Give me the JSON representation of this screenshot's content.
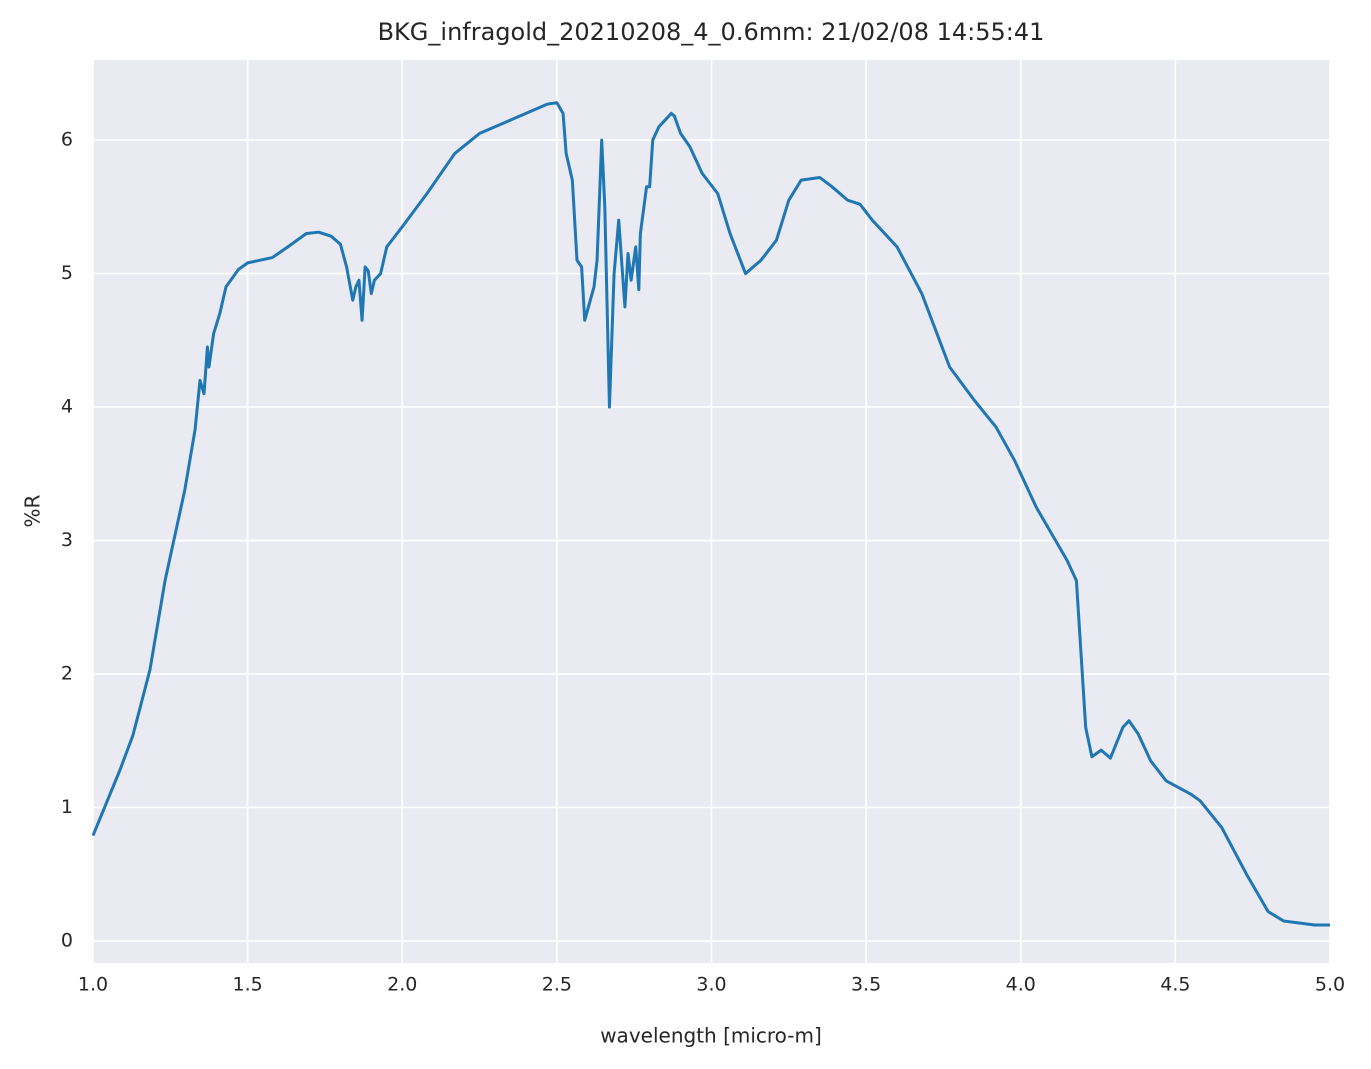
{
  "chart_data": {
    "type": "line",
    "title": "BKG_infragold_20210208_4_0.6mm:  21/02/08 14:55:41",
    "xlabel": "wavelength [micro-m]",
    "ylabel": "%R",
    "x": [
      1.0,
      1.087,
      1.129,
      1.184,
      1.233,
      1.297,
      1.33,
      1.346,
      1.359,
      1.37,
      1.375,
      1.39,
      1.41,
      1.43,
      1.47,
      1.5,
      1.58,
      1.63,
      1.69,
      1.73,
      1.77,
      1.8,
      1.82,
      1.84,
      1.85,
      1.86,
      1.87,
      1.88,
      1.89,
      1.9,
      1.91,
      1.93,
      1.95,
      2.0,
      2.08,
      2.17,
      2.25,
      2.3,
      2.4,
      2.47,
      2.5,
      2.52,
      2.53,
      2.55,
      2.565,
      2.58,
      2.59,
      2.62,
      2.63,
      2.645,
      2.655,
      2.67,
      2.685,
      2.7,
      2.72,
      2.73,
      2.74,
      2.755,
      2.765,
      2.77,
      2.79,
      2.8,
      2.81,
      2.83,
      2.85,
      2.87,
      2.88,
      2.9,
      2.93,
      2.95,
      2.97,
      3.02,
      3.06,
      3.11,
      3.16,
      3.21,
      3.25,
      3.29,
      3.35,
      3.39,
      3.44,
      3.48,
      3.52,
      3.6,
      3.68,
      3.77,
      3.85,
      3.92,
      3.98,
      4.05,
      4.15,
      4.18,
      4.21,
      4.23,
      4.26,
      4.29,
      4.33,
      4.35,
      4.38,
      4.42,
      4.47,
      4.55,
      4.58,
      4.65,
      4.73,
      4.8,
      4.85,
      4.95,
      5.0
    ],
    "series": [
      {
        "name": "%R",
        "color": "#1f77b4",
        "values": [
          0.79,
          1.28,
          1.54,
          2.03,
          2.7,
          3.38,
          3.83,
          4.2,
          4.1,
          4.45,
          4.3,
          4.55,
          4.7,
          4.9,
          5.03,
          5.08,
          5.12,
          5.2,
          5.3,
          5.31,
          5.28,
          5.22,
          5.05,
          4.8,
          4.9,
          4.95,
          4.65,
          5.05,
          5.02,
          4.85,
          4.95,
          5.0,
          5.2,
          5.35,
          5.6,
          5.9,
          6.05,
          6.1,
          6.2,
          6.27,
          6.28,
          6.2,
          5.9,
          5.7,
          5.1,
          5.05,
          4.65,
          4.9,
          5.1,
          6.0,
          5.5,
          4.0,
          5.0,
          5.4,
          4.75,
          5.15,
          4.95,
          5.2,
          4.88,
          5.3,
          5.65,
          5.65,
          6.0,
          6.1,
          6.15,
          6.2,
          6.18,
          6.05,
          5.95,
          5.85,
          5.75,
          5.6,
          5.3,
          5.0,
          5.1,
          5.25,
          5.55,
          5.7,
          5.72,
          5.65,
          5.55,
          5.52,
          5.4,
          5.2,
          4.85,
          4.3,
          4.05,
          3.85,
          3.6,
          3.25,
          2.85,
          2.7,
          1.6,
          1.38,
          1.43,
          1.37,
          1.6,
          1.65,
          1.55,
          1.35,
          1.2,
          1.1,
          1.05,
          0.85,
          0.5,
          0.22,
          0.15,
          0.12,
          0.12
        ]
      }
    ],
    "xlim": [
      1.0,
      5.0
    ],
    "xticks": [
      {
        "value": 1.0,
        "label": "1.0"
      },
      {
        "value": 1.5,
        "label": "1.5"
      },
      {
        "value": 2.0,
        "label": "2.0"
      },
      {
        "value": 2.5,
        "label": "2.5"
      },
      {
        "value": 3.0,
        "label": "3.0"
      },
      {
        "value": 3.5,
        "label": "3.5"
      },
      {
        "value": 4.0,
        "label": "4.0"
      },
      {
        "value": 4.5,
        "label": "4.5"
      },
      {
        "value": 5.0,
        "label": "5.0"
      }
    ],
    "ylim": [
      -0.165,
      6.6
    ],
    "yticks": [
      0,
      1,
      2,
      3,
      4,
      5,
      6
    ],
    "grid": true
  }
}
